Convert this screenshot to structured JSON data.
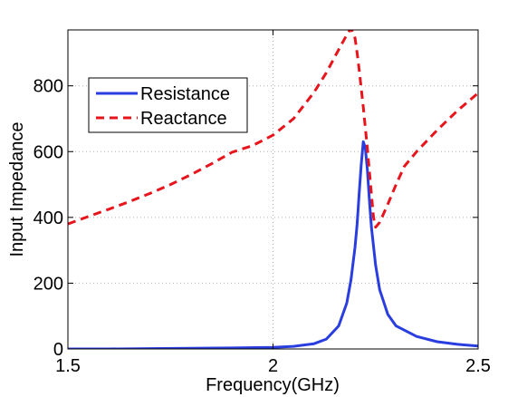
{
  "chart_data": {
    "type": "line",
    "title": "",
    "xlabel": "Frequency(GHz)",
    "ylabel": "Input Impedance",
    "xlim": [
      1.5,
      2.5
    ],
    "ylim": [
      0,
      970
    ],
    "xticks": [
      1.5,
      2,
      2.5
    ],
    "xtick_labels": [
      "1.5",
      "2",
      "2.5"
    ],
    "yticks": [
      0,
      200,
      400,
      600,
      800
    ],
    "ytick_labels": [
      "0",
      "200",
      "400",
      "600",
      "800"
    ],
    "grid": true,
    "legend_position": "upper-left",
    "series": [
      {
        "name": "Resistance",
        "color": "#2a3ee0",
        "style": "solid",
        "x": [
          1.5,
          1.6,
          1.7,
          1.8,
          1.9,
          2.0,
          2.05,
          2.1,
          2.13,
          2.16,
          2.18,
          2.19,
          2.2,
          2.205,
          2.21,
          2.215,
          2.22,
          2.225,
          2.23,
          2.235,
          2.24,
          2.25,
          2.26,
          2.28,
          2.3,
          2.35,
          2.4,
          2.45,
          2.5
        ],
        "y": [
          0,
          0,
          1,
          2,
          3,
          5,
          8,
          16,
          30,
          70,
          140,
          210,
          310,
          380,
          470,
          560,
          630,
          612,
          545,
          450,
          370,
          255,
          180,
          105,
          70,
          38,
          22,
          14,
          9
        ]
      },
      {
        "name": "Reactance",
        "color": "#e8141c",
        "style": "dashed",
        "x": [
          1.5,
          1.55,
          1.6,
          1.65,
          1.7,
          1.75,
          1.8,
          1.85,
          1.9,
          1.95,
          2.0,
          2.05,
          2.1,
          2.13,
          2.16,
          2.18,
          2.19,
          2.2,
          2.205,
          2.21,
          2.22,
          2.23,
          2.24,
          2.245,
          2.25,
          2.26,
          2.28,
          2.3,
          2.32,
          2.35,
          2.4,
          2.45,
          2.5
        ],
        "y": [
          380,
          403,
          425,
          448,
          473,
          500,
          530,
          563,
          598,
          618,
          650,
          700,
          780,
          840,
          910,
          955,
          975,
          945,
          900,
          850,
          735,
          610,
          470,
          400,
          370,
          385,
          440,
          500,
          555,
          600,
          665,
          725,
          778
        ]
      }
    ]
  }
}
